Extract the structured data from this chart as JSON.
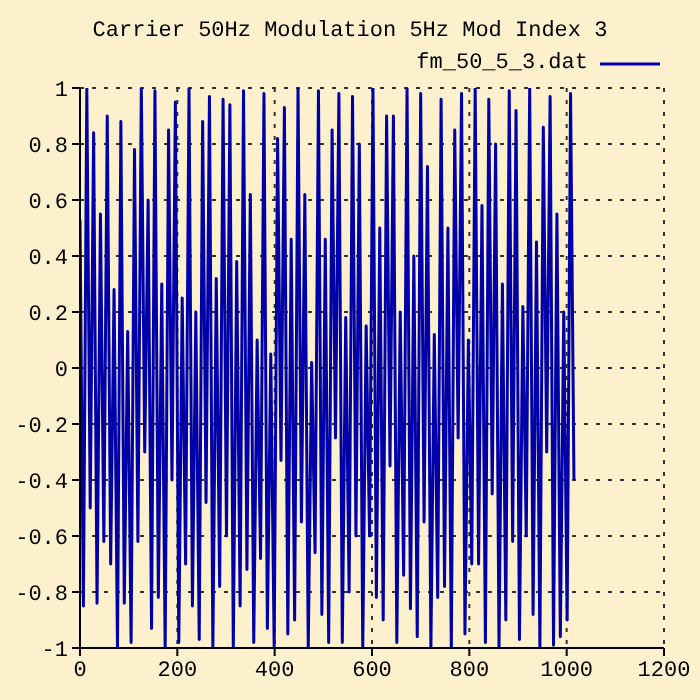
{
  "chart_data": {
    "type": "line",
    "title": "Carrier 50Hz Modulation 5Hz Mod Index 3",
    "x": [
      0,
      7,
      14,
      21,
      28,
      35,
      42,
      49,
      56,
      63,
      70,
      77,
      84,
      91,
      98,
      105,
      112,
      119,
      126,
      133,
      140,
      147,
      154,
      161,
      168,
      175,
      182,
      189,
      196,
      203,
      210,
      217,
      224,
      231,
      238,
      245,
      252,
      259,
      266,
      273,
      280,
      287,
      294,
      301,
      308,
      315,
      322,
      329,
      336,
      343,
      350,
      357,
      364,
      371,
      378,
      385,
      392,
      399,
      406,
      413,
      420,
      427,
      434,
      441,
      448,
      455,
      462,
      469,
      476,
      483,
      490,
      497,
      504,
      511,
      518,
      525,
      532,
      539,
      546,
      553,
      560,
      567,
      574,
      581,
      588,
      595,
      602,
      609,
      616,
      623,
      630,
      637,
      644,
      651,
      658,
      665,
      672,
      679,
      686,
      693,
      700,
      707,
      714,
      721,
      728,
      735,
      742,
      749,
      756,
      763,
      770,
      777,
      784,
      791,
      798,
      805,
      812,
      819,
      826,
      833,
      840,
      847,
      854,
      861,
      868,
      875,
      882,
      889,
      896,
      903,
      910,
      917,
      924,
      931,
      938,
      945,
      952,
      959,
      966,
      973,
      980,
      987,
      994,
      1001,
      1008,
      1015
    ],
    "series": [
      {
        "name": "fm_50_5_3.dat",
        "color": "#0000a8",
        "values": [
          0.53,
          -0.85,
          1,
          -0.5,
          0.84,
          -0.84,
          0.55,
          -0.62,
          0.9,
          -0.7,
          0.28,
          -1,
          0.88,
          -0.84,
          0.13,
          -0.98,
          0.78,
          -0.62,
          1,
          -0.3,
          0.6,
          -0.93,
          0.99,
          -0.82,
          0.3,
          -1,
          0.85,
          -0.4,
          0.95,
          -0.98,
          0.25,
          -0.7,
          1,
          -0.85,
          0.2,
          -0.97,
          0.88,
          -0.48,
          0.97,
          -1,
          0.32,
          -0.78,
          0.96,
          -0.6,
          0.94,
          -1,
          0.38,
          -0.85,
          0.99,
          -0.72,
          0.62,
          -0.98,
          0.1,
          -0.68,
          0.98,
          -0.93,
          0.05,
          -1,
          0.82,
          -0.33,
          0.93,
          -0.95,
          0.46,
          -0.9,
          1,
          -0.55,
          0.62,
          -1,
          0.02,
          -0.66,
          0.99,
          -0.88,
          0.46,
          -0.98,
          0.85,
          -0.25,
          0.98,
          -0.98,
          0.18,
          -0.8,
          0.97,
          -0.6,
          0.8,
          -1,
          0.15,
          -0.6,
          1,
          -0.82,
          0.5,
          -0.9,
          0.9,
          -0.35,
          0.9,
          -0.98,
          0.2,
          -0.74,
          1,
          -0.86,
          0.4,
          -0.96,
          0.98,
          -0.55,
          0.72,
          -1,
          0.12,
          -0.82,
          0.96,
          -0.78,
          0.5,
          -1,
          0.85,
          -0.25,
          0.98,
          -0.95,
          0.1,
          -0.7,
          1,
          -0.7,
          0.58,
          -0.98,
          0.96,
          -0.45,
          0.8,
          -1,
          0.3,
          -0.9,
          0.99,
          -0.62,
          0.92,
          -0.97,
          0.22,
          -0.6,
          1,
          -0.88,
          0.45,
          -1,
          0.86,
          -0.3,
          0.97,
          -0.99,
          0.55,
          -0.96,
          0.2,
          -0.9,
          0.98,
          -0.4
        ]
      }
    ],
    "xlim": [
      0,
      1200
    ],
    "xticks": [
      0,
      200,
      400,
      600,
      800,
      1000,
      1200
    ],
    "ylim": [
      -1,
      1
    ],
    "yticks": [
      -1,
      -0.8,
      -0.6,
      -0.4,
      -0.2,
      0,
      0.2,
      0.4,
      0.6,
      0.8,
      1
    ],
    "grid": true,
    "legend": "top right",
    "marker": "none",
    "line_style": "solid"
  }
}
